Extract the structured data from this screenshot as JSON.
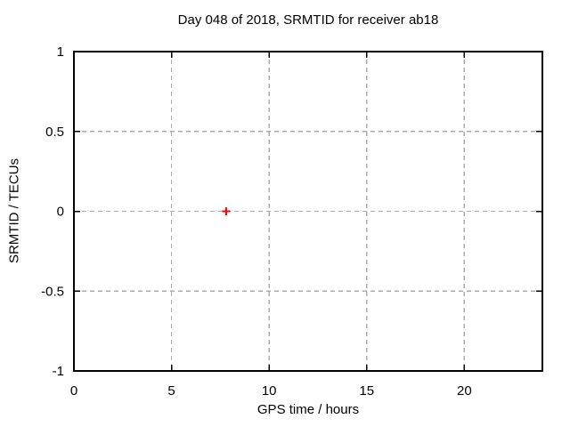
{
  "window": {
    "background": "#ffffff"
  },
  "chart_data": {
    "type": "scatter",
    "title": "Day 048 of 2018, SRMTID for receiver ab18",
    "xlabel": "GPS time / hours",
    "ylabel": "SRMTID / TECUs",
    "xlim": [
      0,
      24
    ],
    "ylim": [
      -1,
      1
    ],
    "xticks": [
      0,
      5,
      10,
      15,
      20
    ],
    "xtick_labels": [
      "0",
      "5",
      "10",
      "15",
      "20"
    ],
    "yticks": [
      -1,
      -0.5,
      0,
      0.5,
      1
    ],
    "ytick_labels": [
      "-1",
      "-0.5",
      "0",
      "0.5",
      "1"
    ],
    "grid": true,
    "legend_position": "none",
    "series": [
      {
        "marker": "plus",
        "color": "#ff0000",
        "points": [
          {
            "x": 7.8,
            "y": 0.0
          }
        ]
      }
    ],
    "colors": {
      "grid": "#ababab",
      "axis": "#000000",
      "text": "#000000",
      "background": "#ffffff"
    }
  }
}
